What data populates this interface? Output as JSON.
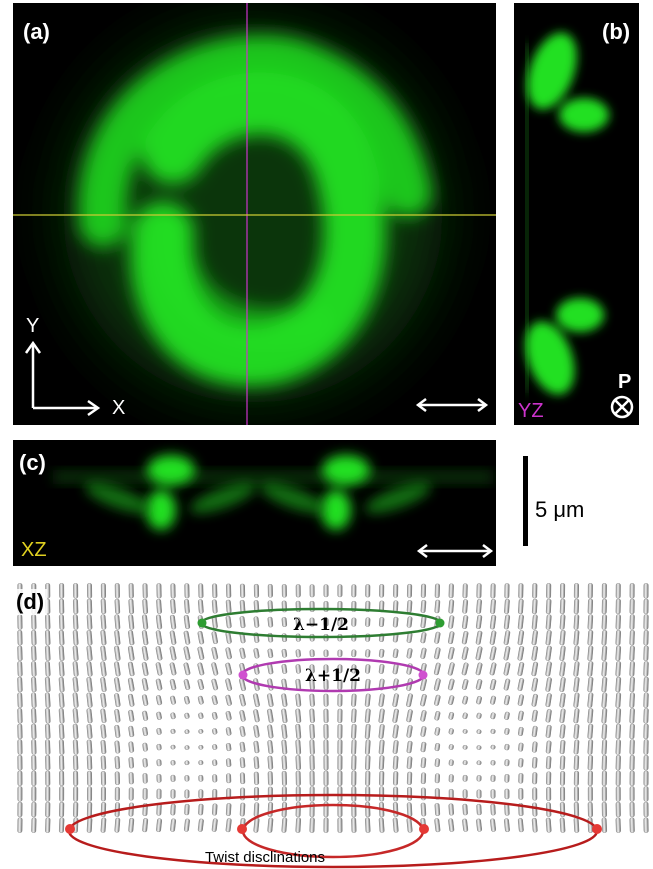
{
  "figure": {
    "panel_a": {
      "label": "(a)",
      "axis_y": "Y",
      "axis_x": "X"
    },
    "panel_b": {
      "label": "(b)",
      "plane": "YZ",
      "polarizer": "P"
    },
    "panel_c": {
      "label": "(c)",
      "plane": "XZ"
    },
    "scale_bar": {
      "text": "5 μm"
    },
    "panel_d": {
      "label": "(d)",
      "defect_neg": "λ−1/2",
      "defect_pos": "λ+1/2",
      "caption": "Twist disclinations"
    },
    "colors": {
      "fluorescence": "#22ee22",
      "crosshair_v": "#cc33cc",
      "crosshair_h": "#cccc33",
      "loop_green": "#2e7d32",
      "loop_magenta": "#b03ab0",
      "loop_red": "#b71c1c"
    }
  }
}
